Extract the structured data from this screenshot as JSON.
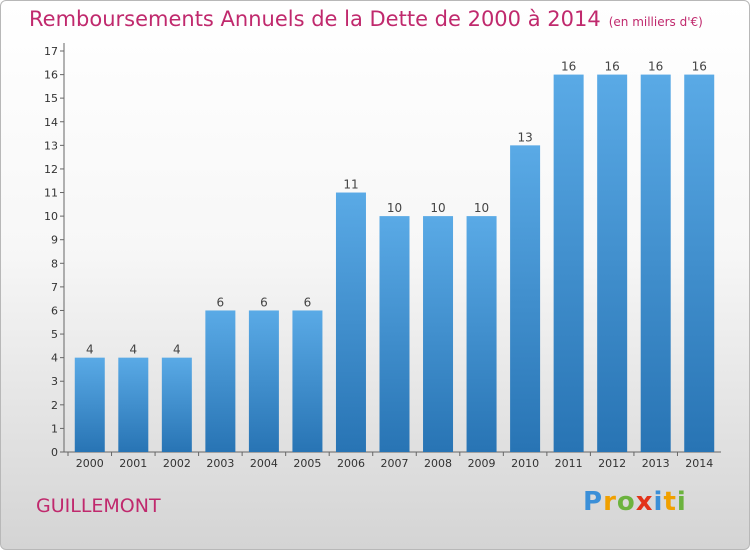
{
  "title": "Remboursements Annuels de la Dette de 2000 à 2014",
  "subtitle": "(en milliers d'€)",
  "commune": "GUILLEMONT",
  "brand": {
    "letters": [
      "P",
      "r",
      "o",
      "x",
      "i",
      "t",
      "i"
    ],
    "colors": [
      "#3a8fd8",
      "#f0a000",
      "#6cb33e",
      "#e2331a",
      "#3a8fd8",
      "#f0a000",
      "#6cb33e"
    ]
  },
  "colors": {
    "bar_top": "#5aaae6",
    "bar_bottom": "#2874b4",
    "title": "#c0296d"
  },
  "chart_data": {
    "type": "bar",
    "title": "Remboursements Annuels de la Dette de 2000 à 2014",
    "xlabel": "",
    "ylabel": "",
    "ylim": [
      0,
      17
    ],
    "yticks": [
      0,
      1,
      2,
      3,
      4,
      5,
      6,
      7,
      8,
      9,
      10,
      11,
      12,
      13,
      14,
      15,
      16,
      17
    ],
    "categories": [
      "2000",
      "2001",
      "2002",
      "2003",
      "2004",
      "2005",
      "2006",
      "2007",
      "2008",
      "2009",
      "2010",
      "2011",
      "2012",
      "2013",
      "2014"
    ],
    "values": [
      4,
      4,
      4,
      6,
      6,
      6,
      11,
      10,
      10,
      10,
      13,
      16,
      16,
      16,
      16
    ],
    "grid": false
  }
}
